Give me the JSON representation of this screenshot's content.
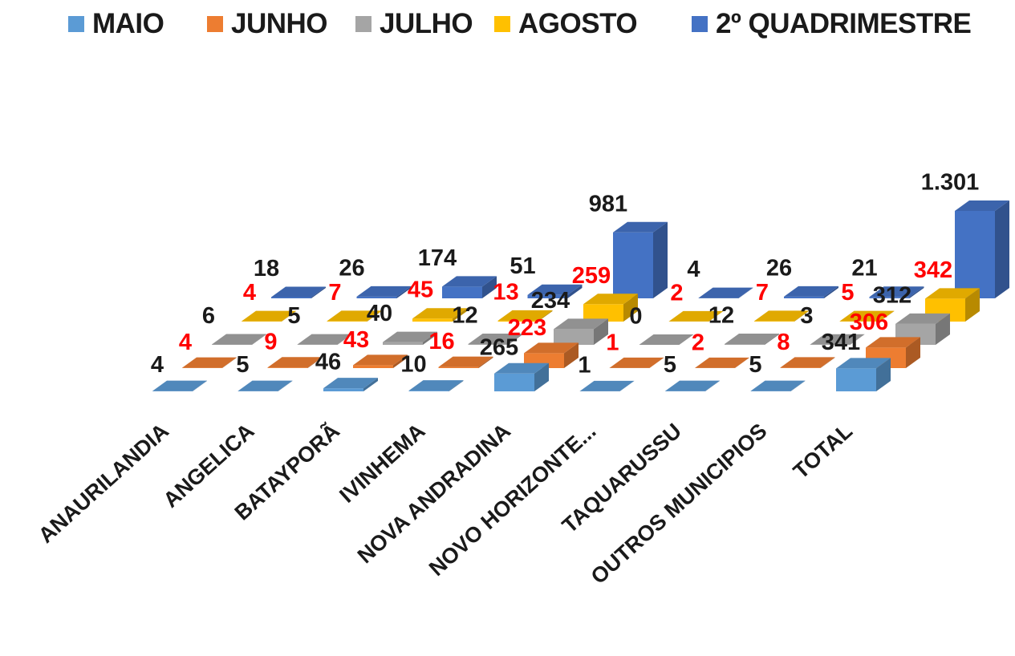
{
  "chart_data": {
    "type": "bar",
    "categories": [
      "ANAURILANDIA",
      "ANGELICA",
      "BATAYPORÃ",
      "IVINHEMA",
      "NOVA ANDRADINA",
      "NOVO HORIZONTE...",
      "TAQUARUSSU",
      "OUTROS MUNICIPIOS",
      "TOTAL"
    ],
    "series": [
      {
        "name": "MAIO",
        "color": "#5B9BD5",
        "label_color": "#1a1a1a",
        "values": [
          4,
          5,
          46,
          10,
          265,
          1,
          5,
          5,
          341
        ],
        "labels": [
          "4",
          "5",
          "46",
          "10",
          "265",
          "1",
          "5",
          "5",
          "341"
        ]
      },
      {
        "name": "JUNHO",
        "color": "#ED7D31",
        "label_color": "#ff0000",
        "values": [
          4,
          9,
          43,
          16,
          223,
          1,
          2,
          8,
          306
        ],
        "labels": [
          "4",
          "9",
          "43",
          "16",
          "223",
          "1",
          "2",
          "8",
          "306"
        ]
      },
      {
        "name": "JULHO",
        "color": "#A5A5A5",
        "label_color": "#1a1a1a",
        "values": [
          6,
          5,
          40,
          12,
          234,
          0,
          12,
          3,
          312
        ],
        "labels": [
          "6",
          "5",
          "40",
          "12",
          "234",
          "0",
          "12",
          "3",
          "312"
        ]
      },
      {
        "name": "AGOSTO",
        "color": "#FFC000",
        "label_color": "#ff0000",
        "values": [
          4,
          7,
          45,
          13,
          259,
          2,
          7,
          5,
          342
        ],
        "labels": [
          "4",
          "7",
          "45",
          "13",
          "259",
          "2",
          "7",
          "5",
          "342"
        ]
      },
      {
        "name": "2º QUADRIMESTRE",
        "color": "#4472C4",
        "label_color": "#1a1a1a",
        "values": [
          18,
          26,
          174,
          51,
          981,
          4,
          26,
          21,
          1301
        ],
        "labels": [
          "18",
          "26",
          "174",
          "51",
          "981",
          "4",
          "26",
          "21",
          "1.301"
        ]
      }
    ],
    "legend_position": "top",
    "projection": "3d",
    "grid": false
  }
}
